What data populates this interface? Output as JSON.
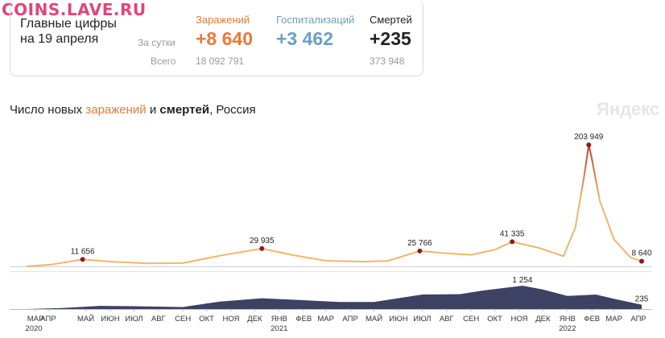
{
  "watermark": "COINS.LAVE.RU",
  "summary": {
    "title_line1": "Главные цифры",
    "title_line2": "на 19 апреля",
    "row_day_label": "За сутки",
    "row_total_label": "Всего",
    "columns": [
      {
        "label": "Заражений",
        "day": "+8 640",
        "total": "18 092 791",
        "color": "#e9793a"
      },
      {
        "label": "Госпитализаций",
        "day": "+3 462",
        "total": "",
        "color": "#6a9fc4"
      },
      {
        "label": "Смертей",
        "day": "+235",
        "total": "373 948",
        "color": "#222222"
      }
    ]
  },
  "chart_title": {
    "prefix": "Число новых ",
    "infections": "заражений",
    "middle": " и ",
    "deaths": "смертей",
    "suffix": ", Россия"
  },
  "brand": "Яндекс",
  "colors": {
    "infections_line": "#f2b56a",
    "infections_peak": "#c0392b",
    "deaths_area": "#3d4163",
    "marker": "#8b1a1a"
  },
  "chart_data": [
    {
      "type": "line",
      "title": "заражений",
      "x": [
        "2020-03-01",
        "2020-04-01",
        "2020-05-11",
        "2020-06-15",
        "2020-08-01",
        "2020-09-15",
        "2020-11-01",
        "2020-12-24",
        "2021-02-01",
        "2021-03-15",
        "2021-05-01",
        "2021-06-01",
        "2021-07-12",
        "2021-08-15",
        "2021-09-15",
        "2021-10-15",
        "2021-11-06",
        "2021-12-10",
        "2022-01-10",
        "2022-01-25",
        "2022-02-05",
        "2022-02-11",
        "2022-02-15",
        "2022-02-25",
        "2022-03-15",
        "2022-04-05",
        "2022-04-19"
      ],
      "values": [
        0,
        3000,
        11656,
        8000,
        5000,
        5500,
        18000,
        29935,
        19000,
        9500,
        8000,
        9000,
        25766,
        22000,
        19500,
        28000,
        41335,
        31000,
        17000,
        65000,
        150000,
        203949,
        180000,
        110000,
        45000,
        15000,
        8640
      ],
      "labeled_points": [
        {
          "x": "2020-05-11",
          "value": 11656,
          "label": "11 656"
        },
        {
          "x": "2020-12-24",
          "value": 29935,
          "label": "29 935"
        },
        {
          "x": "2021-07-12",
          "value": 25766,
          "label": "25 766"
        },
        {
          "x": "2021-11-06",
          "value": 41335,
          "label": "41 335"
        },
        {
          "x": "2022-02-11",
          "value": 203949,
          "label": "203 949"
        },
        {
          "x": "2022-04-19",
          "value": 8640,
          "label": "8 640"
        }
      ]
    },
    {
      "type": "area",
      "title": "смертей",
      "x": [
        "2020-03-01",
        "2020-04-15",
        "2020-06-01",
        "2020-07-15",
        "2020-09-15",
        "2020-11-01",
        "2020-12-24",
        "2021-02-01",
        "2021-04-01",
        "2021-05-15",
        "2021-07-15",
        "2021-09-01",
        "2021-10-01",
        "2021-11-19",
        "2021-12-15",
        "2022-01-15",
        "2022-02-20",
        "2022-03-20",
        "2022-04-19"
      ],
      "values": [
        0,
        50,
        170,
        150,
        110,
        400,
        580,
        500,
        380,
        380,
        780,
        800,
        1000,
        1254,
        1050,
        700,
        780,
        500,
        235
      ],
      "labeled_points": [
        {
          "x": "2021-11-19",
          "value": 1254,
          "label": "1 254"
        },
        {
          "x": "2022-04-19",
          "value": 235,
          "label": "235"
        }
      ]
    }
  ],
  "x_axis": {
    "months": [
      "МАР",
      "АПР",
      "МАЙ",
      "ИЮН",
      "ИЮЛ",
      "АВГ",
      "СЕН",
      "ОКТ",
      "НОЯ",
      "ДЕК",
      "ЯНВ",
      "ФЕВ",
      "МАР",
      "АПР",
      "МАЙ",
      "ИЮН",
      "ИЮЛ",
      "АВГ",
      "СЕН",
      "ОКТ",
      "НОЯ",
      "ДЕК",
      "ЯНВ",
      "ФЕВ",
      "МАР",
      "АПР"
    ],
    "years": [
      {
        "label": "2020",
        "month_index": 0
      },
      {
        "label": "2021",
        "month_index": 10
      },
      {
        "label": "2022",
        "month_index": 22
      }
    ]
  }
}
